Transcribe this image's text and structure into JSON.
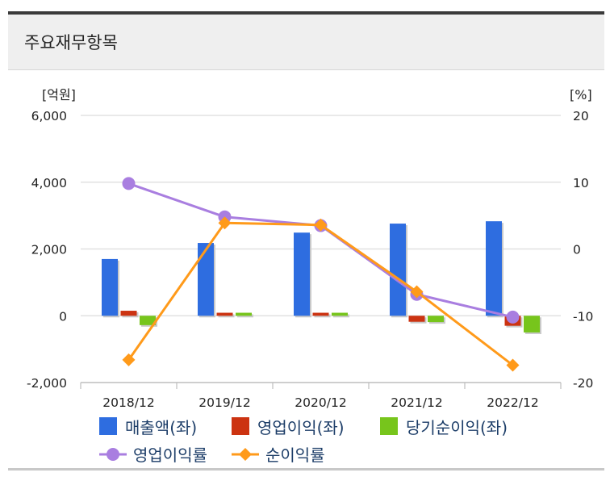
{
  "header": {
    "title": "주요재무항목"
  },
  "chart_data": {
    "type": "bar",
    "categories": [
      "2018/12",
      "2019/12",
      "2020/12",
      "2021/12",
      "2022/12"
    ],
    "left_axis": {
      "unit": "[억원]",
      "ylim": [
        -2000,
        6000
      ],
      "ticks": [
        -2000,
        0,
        2000,
        4000,
        6000
      ],
      "tick_labels": [
        "-2,000",
        "0",
        "2,000",
        "4,000",
        "6,000"
      ]
    },
    "right_axis": {
      "unit": "[%]",
      "ylim": [
        -20,
        20
      ],
      "ticks": [
        -20,
        -10,
        0,
        10,
        20
      ],
      "tick_labels": [
        "-20",
        "-10",
        "0",
        "10",
        "20"
      ]
    },
    "series": [
      {
        "name": "매출액(좌)",
        "type": "bar",
        "axis": "left",
        "color": "#2e6de0",
        "values": [
          1700,
          2180,
          2490,
          2760,
          2830
        ]
      },
      {
        "name": "영업이익(좌)",
        "type": "bar",
        "axis": "left",
        "color": "#cc3311",
        "values": [
          150,
          90,
          90,
          -180,
          -300
        ]
      },
      {
        "name": "당기순이익(좌)",
        "type": "bar",
        "axis": "left",
        "color": "#77c51c",
        "values": [
          -280,
          90,
          90,
          -190,
          -500
        ]
      },
      {
        "name": "영업이익률",
        "type": "line",
        "axis": "right",
        "color": "#a97ee0",
        "marker": "circle",
        "values": [
          9.8,
          4.8,
          3.5,
          -6.8,
          -10.2
        ]
      },
      {
        "name": "순이익률",
        "type": "line",
        "axis": "right",
        "color": "#ff9a1a",
        "marker": "diamond",
        "values": [
          -16.6,
          3.9,
          3.6,
          -6.4,
          -17.4
        ]
      }
    ],
    "grid": true,
    "legend": "bottom"
  }
}
